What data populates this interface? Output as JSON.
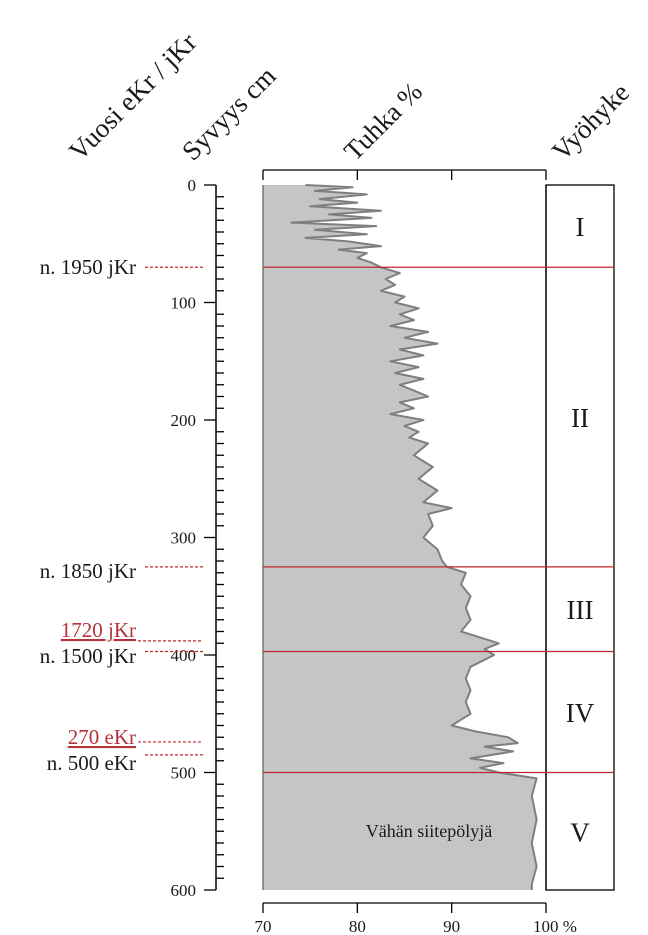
{
  "headers": {
    "year": "Vuosi eKr / jKr",
    "depth": "Syvyys cm",
    "ash": "Tuhka %",
    "zone": "Vyöhyke"
  },
  "colors": {
    "fill": "#c4c5c7",
    "line": "#7f7f7f",
    "boundary": "#c0272d",
    "red_text": "#b5343a",
    "ink": "#1a1a1a"
  },
  "chart_data": {
    "type": "area",
    "xlabel": "Tuhka %",
    "ylabel": "Syvyys cm",
    "xlim": [
      70,
      100
    ],
    "ylim": [
      0,
      600
    ],
    "x_ticks": [
      70,
      80,
      90,
      100
    ],
    "x_tick_labels": [
      "70",
      "80",
      "90",
      "100 %"
    ],
    "y_ticks_labeled": [
      0,
      100,
      200,
      300,
      400,
      500,
      600
    ],
    "y_minor_step": 10,
    "grid": false,
    "profile": [
      [
        0,
        74.5
      ],
      [
        2,
        79.5
      ],
      [
        5,
        75.5
      ],
      [
        8,
        81.0
      ],
      [
        12,
        76.0
      ],
      [
        15,
        80.0
      ],
      [
        18,
        75.0
      ],
      [
        22,
        82.5
      ],
      [
        25,
        77.0
      ],
      [
        28,
        81.5
      ],
      [
        32,
        73.0
      ],
      [
        35,
        82.0
      ],
      [
        38,
        75.5
      ],
      [
        42,
        81.0
      ],
      [
        45,
        74.5
      ],
      [
        48,
        79.0
      ],
      [
        52,
        82.5
      ],
      [
        55,
        78.0
      ],
      [
        58,
        81.0
      ],
      [
        62,
        80.0
      ],
      [
        66,
        81.5
      ],
      [
        70,
        82.5
      ],
      [
        75,
        84.5
      ],
      [
        80,
        83.0
      ],
      [
        85,
        84.0
      ],
      [
        90,
        82.5
      ],
      [
        95,
        85.0
      ],
      [
        100,
        84.0
      ],
      [
        105,
        86.5
      ],
      [
        110,
        84.5
      ],
      [
        115,
        86.0
      ],
      [
        120,
        83.5
      ],
      [
        125,
        87.5
      ],
      [
        130,
        85.0
      ],
      [
        135,
        88.5
      ],
      [
        140,
        84.5
      ],
      [
        145,
        87.0
      ],
      [
        150,
        83.5
      ],
      [
        155,
        86.5
      ],
      [
        160,
        84.0
      ],
      [
        165,
        87.0
      ],
      [
        170,
        84.5
      ],
      [
        175,
        86.0
      ],
      [
        180,
        87.5
      ],
      [
        185,
        84.5
      ],
      [
        190,
        86.0
      ],
      [
        195,
        83.5
      ],
      [
        200,
        87.0
      ],
      [
        205,
        85.0
      ],
      [
        210,
        86.5
      ],
      [
        215,
        85.5
      ],
      [
        220,
        87.5
      ],
      [
        230,
        86.0
      ],
      [
        240,
        88.0
      ],
      [
        250,
        86.5
      ],
      [
        260,
        88.5
      ],
      [
        270,
        87.0
      ],
      [
        275,
        90.0
      ],
      [
        280,
        87.5
      ],
      [
        290,
        88.0
      ],
      [
        300,
        87.0
      ],
      [
        310,
        88.5
      ],
      [
        320,
        89.0
      ],
      [
        325,
        89.5
      ],
      [
        330,
        91.5
      ],
      [
        340,
        91.0
      ],
      [
        350,
        92.0
      ],
      [
        360,
        91.5
      ],
      [
        370,
        92.0
      ],
      [
        380,
        91.0
      ],
      [
        385,
        93.0
      ],
      [
        390,
        95.0
      ],
      [
        395,
        93.5
      ],
      [
        400,
        94.5
      ],
      [
        410,
        92.0
      ],
      [
        420,
        91.5
      ],
      [
        430,
        92.0
      ],
      [
        440,
        91.5
      ],
      [
        450,
        92.0
      ],
      [
        460,
        90.0
      ],
      [
        465,
        92.5
      ],
      [
        470,
        96.0
      ],
      [
        475,
        97.0
      ],
      [
        478,
        93.5
      ],
      [
        482,
        96.5
      ],
      [
        488,
        92.0
      ],
      [
        492,
        95.5
      ],
      [
        496,
        93.0
      ],
      [
        500,
        95.0
      ],
      [
        505,
        99.0
      ],
      [
        520,
        98.5
      ],
      [
        540,
        99.0
      ],
      [
        560,
        98.5
      ],
      [
        580,
        99.0
      ],
      [
        595,
        98.5
      ],
      [
        600,
        98.5
      ]
    ],
    "zones": [
      {
        "label": "I",
        "from": 0,
        "to": 70
      },
      {
        "label": "II",
        "from": 70,
        "to": 325
      },
      {
        "label": "III",
        "from": 325,
        "to": 397
      },
      {
        "label": "IV",
        "from": 397,
        "to": 500
      },
      {
        "label": "V",
        "from": 500,
        "to": 600
      }
    ],
    "date_markers": [
      {
        "label": "n. 1950 jKr",
        "depth": 70,
        "color": "black",
        "underlined": false
      },
      {
        "label": "n. 1850 jKr",
        "depth": 325,
        "color": "black",
        "underlined": false
      },
      {
        "label": "1720 jKr",
        "depth": 388,
        "color": "red",
        "underlined": true
      },
      {
        "label": "n. 1500 jKr",
        "depth": 397,
        "color": "black",
        "underlined": false
      },
      {
        "label": "270 eKr",
        "depth": 474,
        "color": "red",
        "underlined": true
      },
      {
        "label": "n. 500 eKr",
        "depth": 485,
        "color": "black",
        "underlined": false
      }
    ],
    "annotation": {
      "text": "Vähän siitepölyjä",
      "depth": 548
    }
  }
}
